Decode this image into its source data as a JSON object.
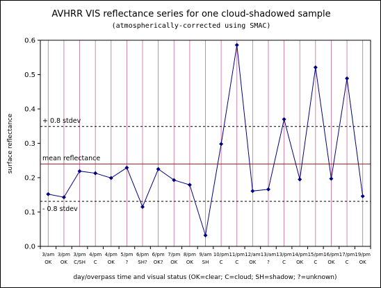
{
  "chart_data": {
    "type": "line",
    "title": "AVHRR VIS reflectance series for one cloud-shadowed sample",
    "subtitle": "(atmospherically-corrected using SMAC)",
    "xlabel": "day/overpass time and visual status (OK=clear; C=cloud; SH=shadow; ?=unknown)",
    "ylabel": "surface reflectance",
    "ylim": [
      0,
      0.6
    ],
    "yticks": [
      0,
      0.1,
      0.2,
      0.3,
      0.4,
      0.5,
      0.6
    ],
    "ytick_labels": [
      "0.0",
      "0.1",
      "0.2",
      "0.3",
      "0.4",
      "0.5",
      "0.6"
    ],
    "grid": "vertical",
    "colors": {
      "series": "#000080",
      "grid": "#cc6699",
      "mean_line": "#8b1a1a",
      "stdev_lines": "#000000"
    },
    "categories": [
      {
        "time": "3/am",
        "status": "OK"
      },
      {
        "time": "3/pm",
        "status": "OK"
      },
      {
        "time": "3/pm",
        "status": "C/SH"
      },
      {
        "time": "4/pm",
        "status": "C"
      },
      {
        "time": "4/pm",
        "status": "OK"
      },
      {
        "time": "5/pm",
        "status": "?"
      },
      {
        "time": "6/pm",
        "status": "SH?"
      },
      {
        "time": "6/pm",
        "status": "OK?"
      },
      {
        "time": "7/pm",
        "status": "OK"
      },
      {
        "time": "8/pm",
        "status": "OK"
      },
      {
        "time": "9/am",
        "status": "SH"
      },
      {
        "time": "10/pm",
        "status": "C"
      },
      {
        "time": "11/pm",
        "status": "C"
      },
      {
        "time": "12/am",
        "status": "OK"
      },
      {
        "time": "13/am",
        "status": "?"
      },
      {
        "time": "13/pm",
        "status": "C"
      },
      {
        "time": "14/pm",
        "status": "OK"
      },
      {
        "time": "15/pm",
        "status": "C"
      },
      {
        "time": "16/pm",
        "status": "OK"
      },
      {
        "time": "17/pm",
        "status": "C"
      },
      {
        "time": "19/pm",
        "status": "OK"
      }
    ],
    "series": [
      {
        "values": [
          0.152,
          0.143,
          0.219,
          0.213,
          0.199,
          0.229,
          0.115,
          0.225,
          0.193,
          0.179,
          0.032,
          0.298,
          0.586,
          0.161,
          0.166,
          0.37,
          0.195,
          0.521,
          0.197,
          0.489,
          0.146
        ]
      }
    ],
    "reference_lines": [
      {
        "label": "+ 0.8 stdev",
        "value": 0.349,
        "style": "dashed"
      },
      {
        "label": "mean reflectance",
        "value": 0.24,
        "style": "solid"
      },
      {
        "label": "- 0.8 stdev",
        "value": 0.131,
        "style": "dashed"
      }
    ]
  }
}
